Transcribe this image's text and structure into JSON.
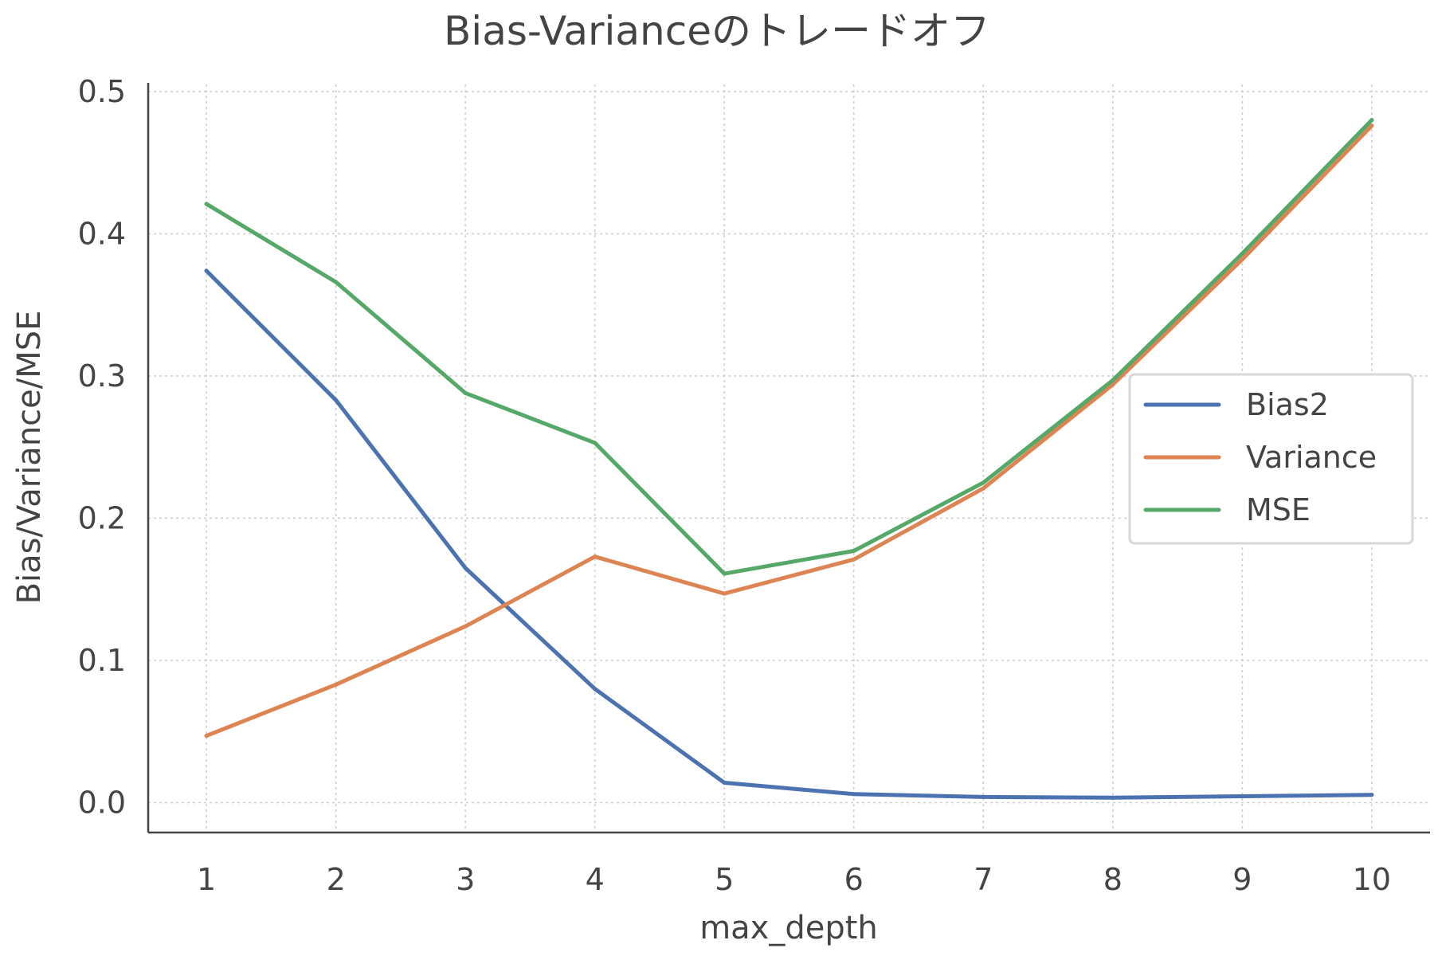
{
  "chart_data": {
    "type": "line",
    "title": "Bias-Varianceのトレードオフ",
    "xlabel": "max_depth",
    "ylabel": "Bias/Variance/MSE",
    "x": [
      1,
      2,
      3,
      4,
      5,
      6,
      7,
      8,
      9,
      10
    ],
    "x_tick_labels": [
      "1",
      "2",
      "3",
      "4",
      "5",
      "6",
      "7",
      "8",
      "9",
      "10"
    ],
    "y_tick_values": [
      0.0,
      0.1,
      0.2,
      0.3,
      0.4,
      0.5
    ],
    "y_tick_labels": [
      "0.0",
      "0.1",
      "0.2",
      "0.3",
      "0.4",
      "0.5"
    ],
    "xlim": [
      0.55,
      10.45
    ],
    "ylim": [
      -0.021,
      0.505
    ],
    "grid": true,
    "legend_position": "center-right",
    "series": [
      {
        "name": "Bias2",
        "color": "#4c72b0",
        "values": [
          0.374,
          0.283,
          0.165,
          0.08,
          0.014,
          0.006,
          0.004,
          0.0035,
          0.0045,
          0.0055
        ]
      },
      {
        "name": "Variance",
        "color": "#dd8452",
        "values": [
          0.047,
          0.083,
          0.124,
          0.173,
          0.147,
          0.171,
          0.221,
          0.294,
          0.382,
          0.476
        ]
      },
      {
        "name": "MSE",
        "color": "#55a868",
        "values": [
          0.421,
          0.366,
          0.288,
          0.253,
          0.161,
          0.177,
          0.225,
          0.297,
          0.386,
          0.48
        ]
      }
    ]
  }
}
